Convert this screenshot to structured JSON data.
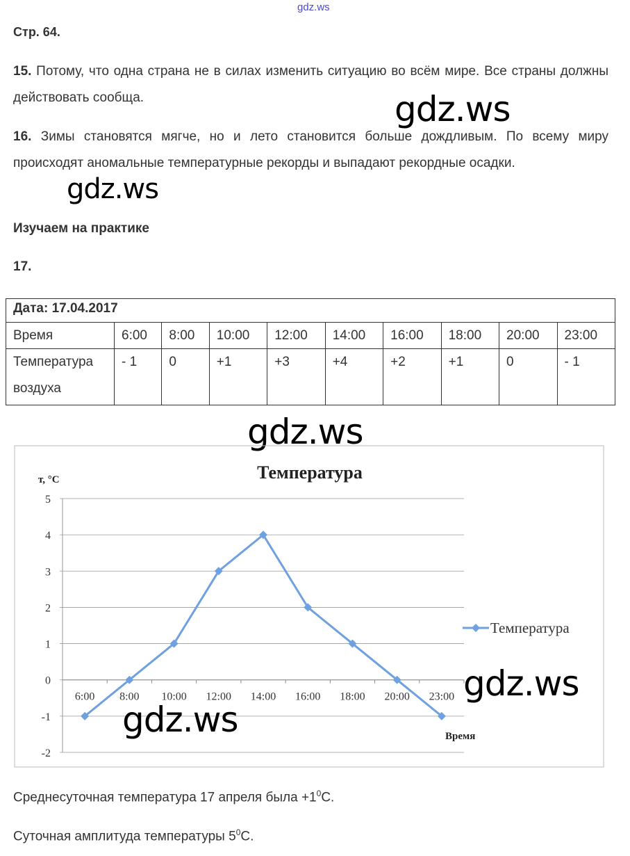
{
  "watermarks": {
    "top_small": "gdz.ws",
    "mark": "gdz.ws"
  },
  "page_ref": "Стр. 64.",
  "answers": [
    {
      "num": "15.",
      "text": " Потому, что одна страна не в силах изменить ситуацию во всём мире. Все страны должны действовать сообща."
    },
    {
      "num": "16.",
      "text": " Зимы становятся мягче, но и лето становится больше дождливым. По всему миру происходят аномальные температурные рекорды и выпадают рекордные осадки."
    }
  ],
  "section_title": "Изучаем на практике",
  "task_num": "17.",
  "table": {
    "date_label": "Дата: 17.04.2017",
    "row_time_label": "Время",
    "times": [
      "6:00",
      "8:00",
      "10:00",
      "12:00",
      "14:00",
      "16:00",
      "18:00",
      "20:00",
      "23:00"
    ],
    "row_temp_label": "Температура воздуха",
    "temps": [
      "- 1",
      "0",
      "+1",
      "+3",
      "+4",
      "+2",
      "+1",
      "0",
      "- 1"
    ]
  },
  "chart_data": {
    "type": "line",
    "title": "Температура",
    "ylabel": "т, °С",
    "xlabel": "Время",
    "categories": [
      "6:00",
      "8:00",
      "10:00",
      "12:00",
      "14:00",
      "16:00",
      "18:00",
      "20:00",
      "23:00"
    ],
    "series": [
      {
        "name": "Температура",
        "values": [
          -1,
          0,
          1,
          3,
          4,
          2,
          1,
          0,
          -1
        ]
      }
    ],
    "ylim": [
      -2,
      5
    ],
    "yticks": [
      "-2",
      "-1",
      "0",
      "1",
      "2",
      "3",
      "4",
      "5"
    ],
    "grid": true,
    "legend": "right",
    "color": "#6fa0e0"
  },
  "conclusions": [
    {
      "text": "Среднесуточная температура 17 апреля была +1",
      "sup": "0",
      "unit": "С."
    },
    {
      "text": "Суточная амплитуда температуры 5",
      "sup": "0",
      "unit": "С."
    }
  ]
}
